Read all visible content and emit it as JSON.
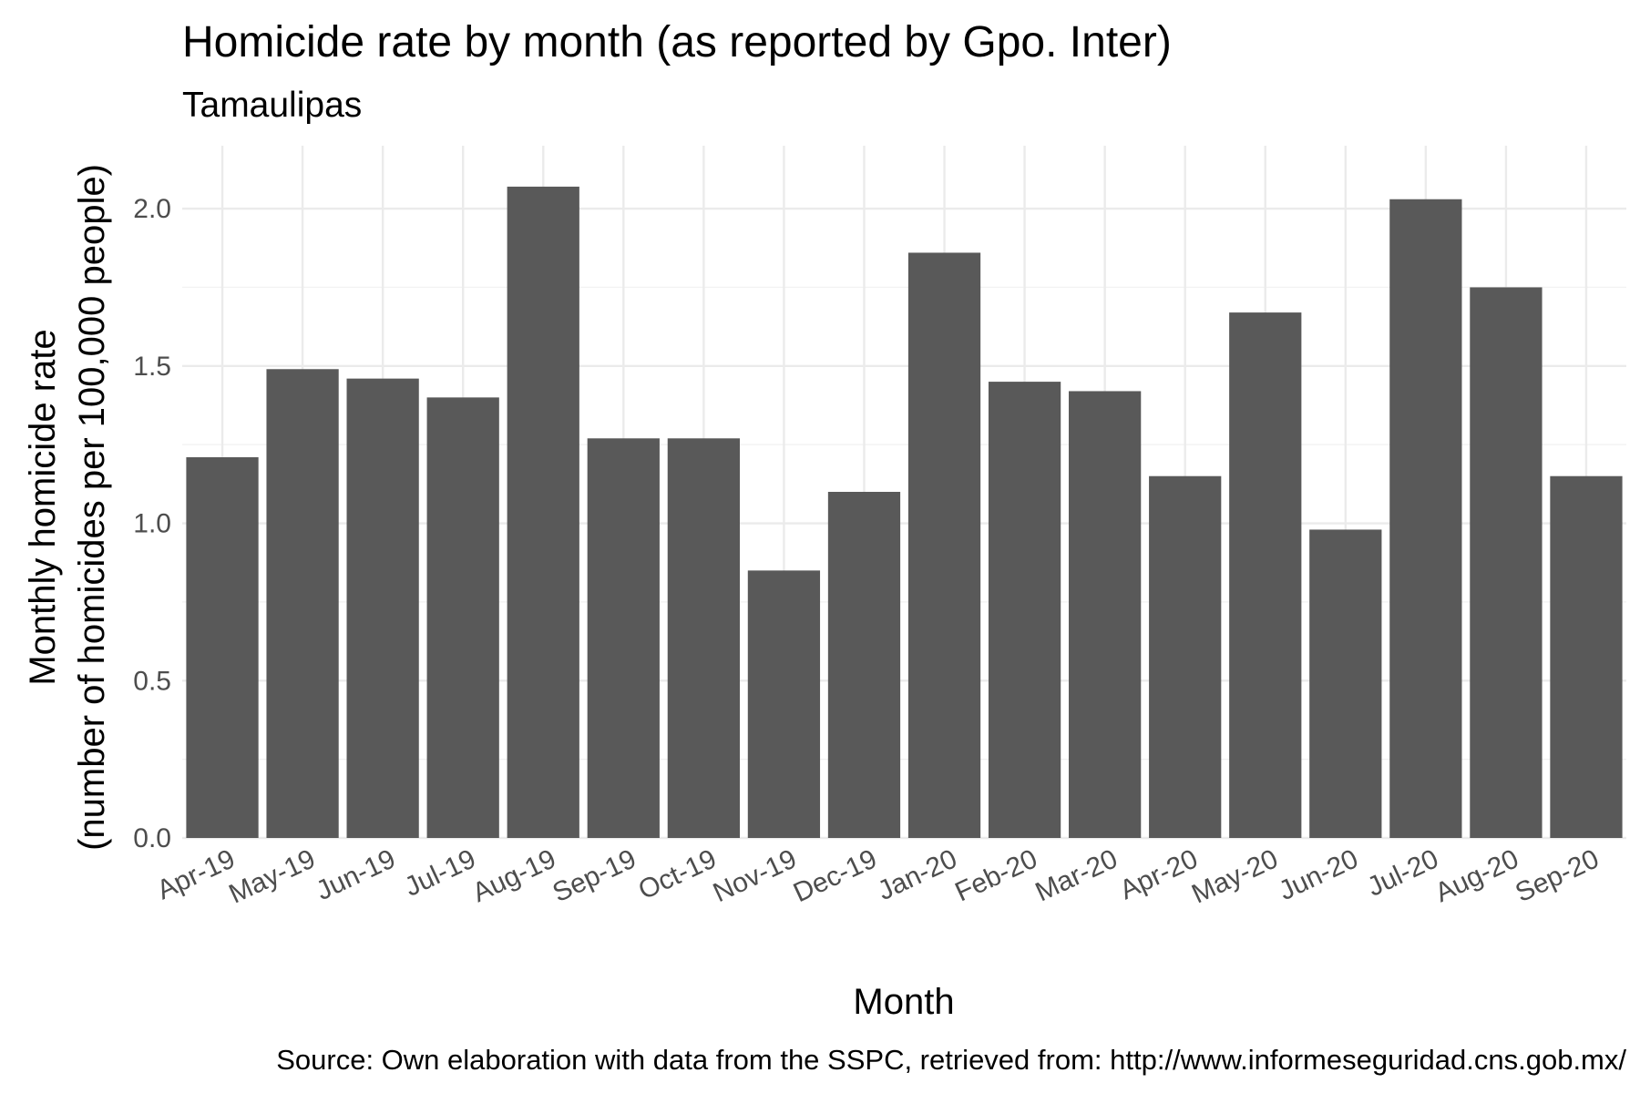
{
  "chart_data": {
    "type": "bar",
    "title": "Homicide rate by month (as reported by Gpo. Inter)",
    "subtitle": "Tamaulipas",
    "xlabel": "Month",
    "ylabel_line1": "Monthly homicide rate",
    "ylabel_line2": "(number of homicides per 100,000 people)",
    "caption": "Source: Own elaboration with data from the SSPC, retrieved from: http://www.informeseguridad.cns.gob.mx/",
    "categories": [
      "Apr-19",
      "May-19",
      "Jun-19",
      "Jul-19",
      "Aug-19",
      "Sep-19",
      "Oct-19",
      "Nov-19",
      "Dec-19",
      "Jan-20",
      "Feb-20",
      "Mar-20",
      "Apr-20",
      "May-20",
      "Jun-20",
      "Jul-20",
      "Aug-20",
      "Sep-20"
    ],
    "values": [
      1.21,
      1.49,
      1.46,
      1.4,
      2.07,
      1.27,
      1.27,
      0.85,
      1.1,
      1.86,
      1.45,
      1.42,
      1.15,
      1.67,
      0.98,
      2.03,
      1.75,
      1.15
    ],
    "ylim": [
      0,
      2.2
    ],
    "yticks": [
      0.0,
      0.5,
      1.0,
      1.5,
      2.0
    ],
    "ytick_labels": [
      "0.0",
      "0.5",
      "1.0",
      "1.5",
      "2.0"
    ],
    "grid": true,
    "legend": "none",
    "bar_color": "#595959"
  }
}
